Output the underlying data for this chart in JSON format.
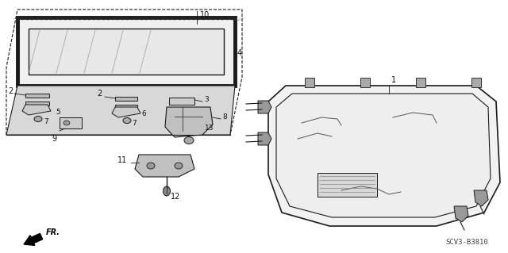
{
  "bg_color": "#ffffff",
  "line_color": "#1a1a1a",
  "text_color": "#111111",
  "footer_text": "SCV3-B3810",
  "label_fontsize": 7.0,
  "footer_fontsize": 6.5
}
